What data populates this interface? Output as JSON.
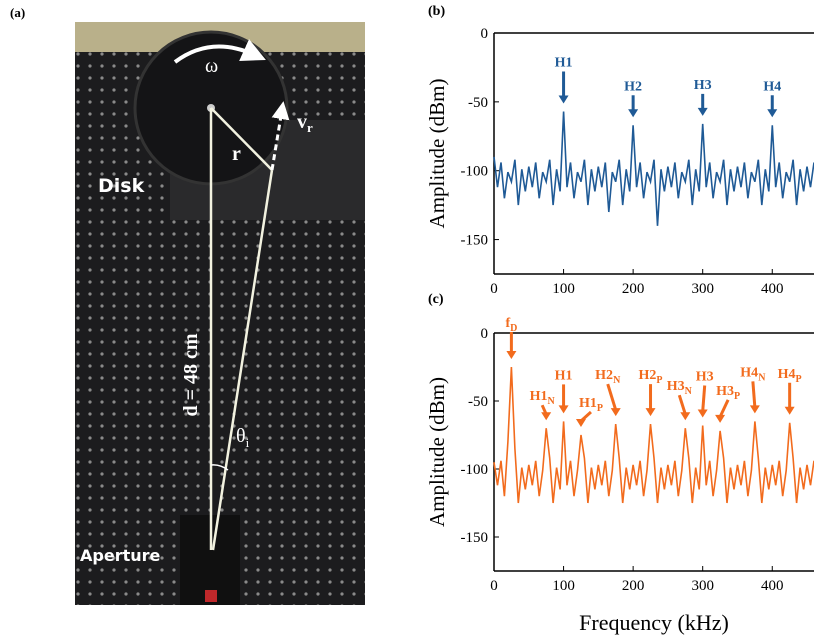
{
  "panel_a": {
    "label": "(a)",
    "disk": "Disk",
    "aperture": "Aperture",
    "omega": "ω",
    "r": "r",
    "v": "v",
    "v_sub": "r",
    "distance": "d = 48 cm",
    "theta": "θ",
    "theta_sub": "i"
  },
  "chart_data": [
    {
      "type": "line",
      "panel": "(b)",
      "ylabel": "Amplitude (dBm)",
      "color": "#1f5a96",
      "xlim": [
        0,
        460
      ],
      "ylim": [
        -175,
        0
      ],
      "xticks": [
        0,
        100,
        200,
        300,
        400
      ],
      "yticks": [
        0,
        -50,
        -100,
        -150
      ],
      "x": [
        0,
        5,
        10,
        15,
        20,
        25,
        30,
        35,
        40,
        45,
        50,
        55,
        60,
        65,
        70,
        75,
        80,
        85,
        90,
        95,
        100,
        105,
        110,
        115,
        120,
        125,
        130,
        135,
        140,
        145,
        150,
        155,
        160,
        165,
        170,
        175,
        180,
        185,
        190,
        195,
        200,
        205,
        210,
        215,
        220,
        225,
        230,
        235,
        240,
        245,
        250,
        255,
        260,
        265,
        270,
        275,
        280,
        285,
        290,
        295,
        300,
        305,
        310,
        315,
        320,
        325,
        330,
        335,
        340,
        345,
        350,
        355,
        360,
        365,
        370,
        375,
        380,
        385,
        390,
        395,
        400,
        405,
        410,
        415,
        420,
        425,
        430,
        435,
        440,
        445,
        450,
        455,
        460
      ],
      "values": [
        -90,
        -112,
        -94,
        -120,
        -101,
        -108,
        -92,
        -125,
        -99,
        -115,
        -97,
        -112,
        -94,
        -120,
        -101,
        -108,
        -92,
        -125,
        -99,
        -115,
        -57,
        -112,
        -94,
        -120,
        -101,
        -108,
        -92,
        -125,
        -99,
        -115,
        -97,
        -112,
        -94,
        -130,
        -101,
        -108,
        -92,
        -125,
        -99,
        -115,
        -67,
        -112,
        -94,
        -120,
        -101,
        -108,
        -92,
        -140,
        -99,
        -115,
        -97,
        -112,
        -94,
        -120,
        -101,
        -108,
        -92,
        -125,
        -99,
        -115,
        -66,
        -112,
        -94,
        -120,
        -101,
        -108,
        -92,
        -125,
        -99,
        -115,
        -97,
        -112,
        -94,
        -120,
        -101,
        -108,
        -92,
        -125,
        -99,
        -115,
        -67,
        -112,
        -94,
        -120,
        -101,
        -108,
        -92,
        -125,
        -99,
        -115,
        -97,
        -112,
        -94
      ],
      "annotations": [
        {
          "text": "H1",
          "x": 100
        },
        {
          "text": "H2",
          "x": 200
        },
        {
          "text": "H3",
          "x": 300
        },
        {
          "text": "H4",
          "x": 400
        }
      ]
    },
    {
      "type": "line",
      "panel": "(c)",
      "ylabel": "Amplitude (dBm)",
      "xlabel": "Frequency (kHz)",
      "color": "#f26b1d",
      "xlim": [
        0,
        460
      ],
      "ylim": [
        -175,
        0
      ],
      "xticks": [
        0,
        100,
        200,
        300,
        400
      ],
      "yticks": [
        0,
        -50,
        -100,
        -150
      ],
      "x": [
        0,
        5,
        10,
        15,
        20,
        25,
        30,
        35,
        40,
        45,
        50,
        55,
        60,
        65,
        70,
        75,
        80,
        85,
        90,
        95,
        100,
        105,
        110,
        115,
        120,
        125,
        130,
        135,
        140,
        145,
        150,
        155,
        160,
        165,
        170,
        175,
        180,
        185,
        190,
        195,
        200,
        205,
        210,
        215,
        220,
        225,
        230,
        235,
        240,
        245,
        250,
        255,
        260,
        265,
        270,
        275,
        280,
        285,
        290,
        295,
        300,
        305,
        310,
        315,
        320,
        325,
        330,
        335,
        340,
        345,
        350,
        355,
        360,
        365,
        370,
        375,
        380,
        385,
        390,
        395,
        400,
        405,
        410,
        415,
        420,
        425,
        430,
        435,
        440,
        445,
        450,
        455,
        460
      ],
      "values": [
        -95,
        -112,
        -94,
        -120,
        -80,
        -25,
        -85,
        -125,
        -99,
        -115,
        -97,
        -112,
        -94,
        -120,
        -101,
        -70,
        -92,
        -125,
        -99,
        -115,
        -65,
        -112,
        -94,
        -120,
        -101,
        -75,
        -92,
        -125,
        -99,
        -115,
        -97,
        -112,
        -94,
        -120,
        -101,
        -67,
        -92,
        -125,
        -99,
        -115,
        -97,
        -112,
        -94,
        -120,
        -101,
        -67,
        -92,
        -125,
        -99,
        -115,
        -97,
        -112,
        -94,
        -120,
        -101,
        -70,
        -92,
        -125,
        -99,
        -115,
        -68,
        -112,
        -94,
        -120,
        -101,
        -72,
        -92,
        -125,
        -99,
        -115,
        -97,
        -112,
        -94,
        -120,
        -101,
        -65,
        -92,
        -125,
        -99,
        -115,
        -97,
        -112,
        -94,
        -120,
        -101,
        -66,
        -92,
        -125,
        -99,
        -115,
        -97,
        -112,
        -94
      ],
      "annotations": [
        {
          "text": "f",
          "sub": "D",
          "x": 25
        },
        {
          "text": "H1",
          "sub": "N",
          "x": 75
        },
        {
          "text": "H1",
          "x": 100
        },
        {
          "text": "H1",
          "sub": "P",
          "x": 125
        },
        {
          "text": "H2",
          "sub": "N",
          "x": 175
        },
        {
          "text": "H2",
          "sub": "P",
          "x": 225
        },
        {
          "text": "H3",
          "sub": "N",
          "x": 275
        },
        {
          "text": "H3",
          "x": 300
        },
        {
          "text": "H3",
          "sub": "P",
          "x": 325
        },
        {
          "text": "H4",
          "sub": "N",
          "x": 375
        },
        {
          "text": "H4",
          "sub": "P",
          "x": 425
        }
      ]
    }
  ]
}
